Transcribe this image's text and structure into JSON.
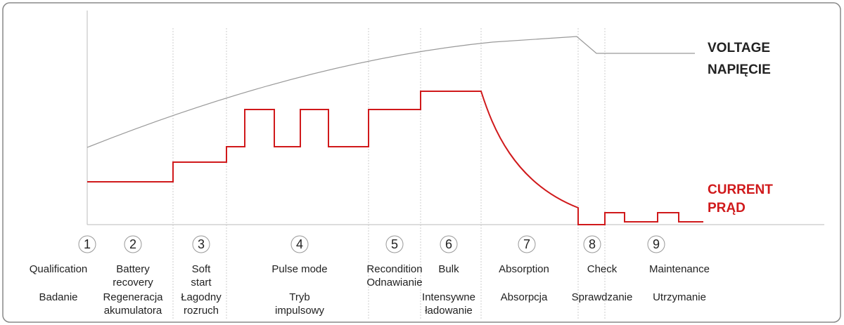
{
  "voltage_label": [
    "VOLTAGE",
    "NAPIĘCIE"
  ],
  "current_label": [
    "CURRENT",
    "PRĄD"
  ],
  "stages": [
    {
      "number": "1",
      "en": [
        "Qualification"
      ],
      "pl": [
        "Badanie"
      ]
    },
    {
      "number": "2",
      "en": [
        "Battery",
        "recovery"
      ],
      "pl": [
        "Regeneracja",
        "akumulatora"
      ]
    },
    {
      "number": "3",
      "en": [
        "Soft",
        "start"
      ],
      "pl": [
        "Łagodny",
        "rozruch"
      ]
    },
    {
      "number": "4",
      "en": [
        "Pulse mode"
      ],
      "pl": [
        "Tryb",
        "impulsowy"
      ]
    },
    {
      "number": "5",
      "en": [
        "Recondition"
      ],
      "pl": [
        "Odnawianie"
      ]
    },
    {
      "number": "6",
      "en": [
        "Bulk"
      ],
      "pl": [
        "Intensywne",
        "ładowanie"
      ]
    },
    {
      "number": "7",
      "en": [
        "Absorption"
      ],
      "pl": [
        "Absorpcja"
      ]
    },
    {
      "number": "8",
      "en": [
        "Check"
      ],
      "pl": [
        "Sprawdzanie"
      ]
    },
    {
      "number": "9",
      "en": [
        "Maintenance"
      ],
      "pl": [
        "Utrzymanie"
      ]
    }
  ]
}
